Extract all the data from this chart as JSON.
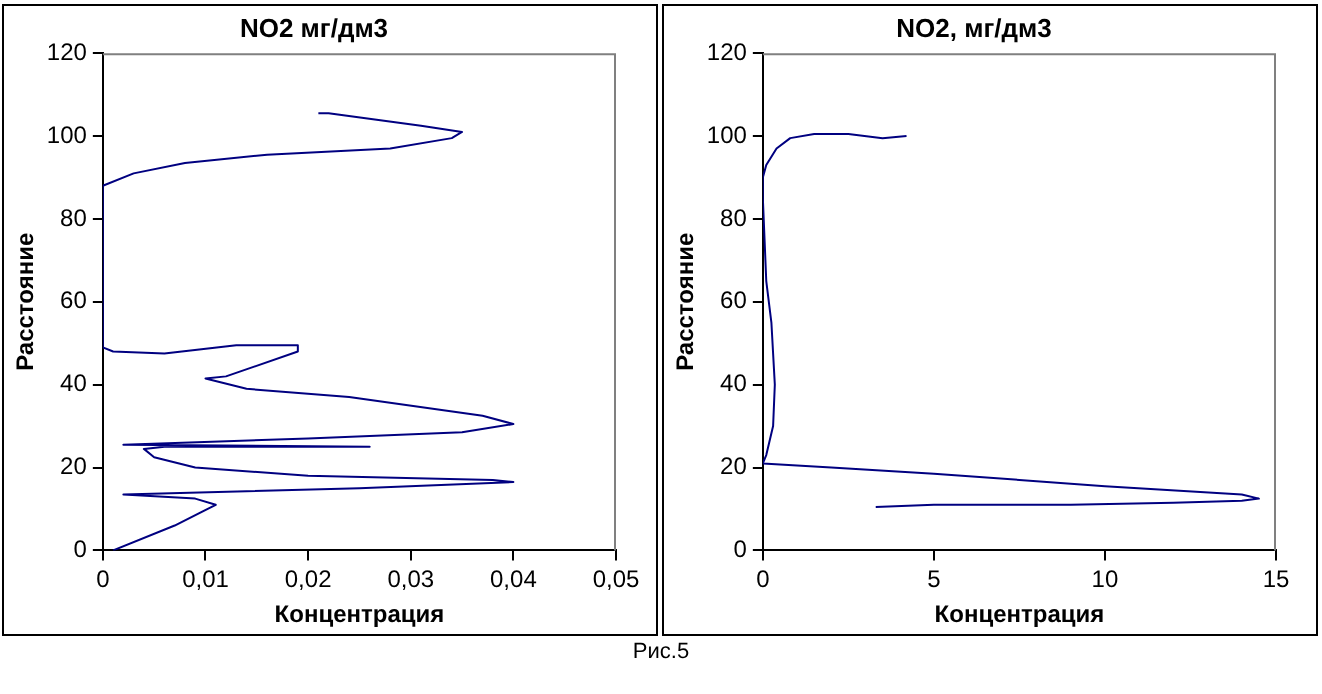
{
  "chart_data": [
    {
      "type": "line",
      "title": "NO2 мг/дм3",
      "xlabel": "Концентрация",
      "ylabel": "Расстояние",
      "grid": false,
      "legend": false,
      "marker": "none",
      "line_style": "solid",
      "xlim": [
        0,
        0.05
      ],
      "xticks": [
        0,
        {
          "value": 0.01,
          "label": "0,01"
        },
        {
          "value": 0.02,
          "label": "0,02"
        },
        {
          "value": 0.03,
          "label": "0,03"
        },
        {
          "value": 0.04,
          "label": "0,04"
        },
        {
          "value": 0.05,
          "label": "0,05"
        }
      ],
      "ylim": [
        0,
        120
      ],
      "yticks": [
        0,
        20,
        40,
        60,
        80,
        100,
        120
      ],
      "annotations": [
        "Рис.5"
      ],
      "series": [
        {
          "color": "#000080",
          "x": [
            0.001,
            0.007,
            0.011,
            0.009,
            0.002,
            0.025,
            0.04,
            0.038,
            0.02,
            0.009,
            0.005,
            0.004,
            0.006,
            0.026,
            0.002,
            0.02,
            0.035,
            0.04,
            0.037,
            0.024,
            0.014,
            0.01,
            0.012,
            0.019,
            0.019,
            0.013,
            0.006,
            0.001,
            0,
            0,
            0.003,
            0.008,
            0.016,
            0.028,
            0.034,
            0.035,
            0.031,
            0.022,
            0.021
          ],
          "values": [
            0,
            6,
            11,
            12.5,
            13.5,
            15,
            16.5,
            17,
            18,
            20,
            22.5,
            24.5,
            25,
            25,
            25.5,
            27,
            28.5,
            30.5,
            32.5,
            37,
            39,
            41.5,
            42,
            48,
            49.5,
            49.5,
            47.5,
            48,
            49,
            88,
            91,
            93.5,
            95.5,
            97,
            99.5,
            101,
            102.5,
            105.5,
            105.5
          ]
        }
      ]
    },
    {
      "type": "line",
      "title": "NO2, мг/дм3",
      "xlabel": "Концентрация",
      "ylabel": "Расстояние",
      "grid": false,
      "legend": false,
      "marker": "none",
      "line_style": "solid",
      "xlim": [
        0,
        15
      ],
      "xticks": [
        0,
        5,
        10,
        15
      ],
      "ylim": [
        0,
        120
      ],
      "yticks": [
        0,
        20,
        40,
        60,
        80,
        100,
        120
      ],
      "series": [
        {
          "color": "#000080",
          "x": [
            3.3,
            5,
            9,
            12,
            14,
            14.5,
            14,
            10,
            5,
            2,
            0,
            0.1,
            0.3,
            0.35,
            0.25,
            0.1,
            0.05,
            0,
            0,
            0.1,
            0.4,
            0.8,
            1.5,
            2.5,
            3.5,
            4.2
          ],
          "values": [
            10.5,
            11,
            11,
            11.5,
            12,
            12.5,
            13.5,
            15.5,
            18.5,
            20,
            21,
            23,
            30,
            40,
            55,
            65,
            75,
            85,
            90,
            93,
            97,
            99.5,
            100.5,
            100.5,
            99.5,
            100
          ]
        }
      ]
    }
  ]
}
